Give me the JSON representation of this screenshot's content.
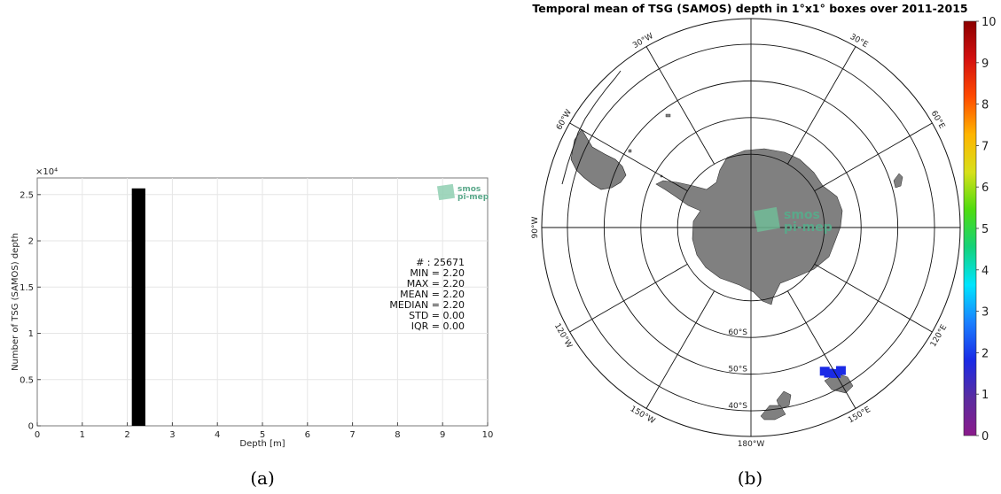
{
  "captions": [
    "(a)",
    "(b)"
  ],
  "logo": {
    "line1": "smos",
    "line2": "pi-mep",
    "color": "#5aa88a"
  },
  "chart_data": [
    {
      "type": "bar",
      "panel": "a",
      "title": "",
      "xlabel": "Depth [m]",
      "ylabel": "Number of TSG (SAMOS) depth",
      "xlim": [
        0,
        10
      ],
      "ylim": [
        0,
        26800
      ],
      "xticks": [
        0,
        1,
        2,
        3,
        4,
        5,
        6,
        7,
        8,
        9,
        10
      ],
      "yticks": [
        0,
        0.5,
        1,
        1.5,
        2,
        2.5
      ],
      "y_exponent_label": "×10⁴",
      "grid": true,
      "bins": [
        {
          "x0": 2.1,
          "x1": 2.4,
          "value": 25671
        }
      ],
      "bar_color": "#000000",
      "stats": [
        "# : 25671",
        "MIN = 2.20",
        "MAX =  2.20",
        "MEAN = 2.20",
        "MEDIAN = 2.20",
        "STD = 0.00",
        "IQR = 0.00"
      ]
    },
    {
      "type": "heatmap",
      "panel": "b",
      "projection": "south-polar-stereographic",
      "title": "Temporal mean of TSG (SAMOS) depth in 1°x1° boxes over 2011-2015",
      "colorbar_range": [
        0,
        10
      ],
      "colorbar_ticks": [
        0,
        1,
        2,
        3,
        4,
        5,
        6,
        7,
        8,
        9,
        10
      ],
      "colorbar_stops": [
        "#8b1a8b",
        "#5a2ca0",
        "#1a2ae6",
        "#1a7fff",
        "#00e5ff",
        "#14d27a",
        "#4fdc10",
        "#d8e01a",
        "#ffb400",
        "#ff4a00",
        "#d41010",
        "#8b0000"
      ],
      "latitude_labels": [
        "60°S",
        "50°S",
        "40°S"
      ],
      "longitude_labels": [
        {
          "text": "30°W",
          "angle": 30
        },
        {
          "text": "30°E",
          "angle": -30
        },
        {
          "text": "60°W",
          "angle": 60
        },
        {
          "text": "60°E",
          "angle": -60
        },
        {
          "text": "90°W",
          "angle": 90
        },
        {
          "text": "120°W",
          "angle": 120
        },
        {
          "text": "120°E",
          "angle": -120
        },
        {
          "text": "150°W",
          "angle": 150
        },
        {
          "text": "150°E",
          "angle": -150
        },
        {
          "text": "180°W",
          "angle": 180
        }
      ],
      "data_cells": [
        {
          "lon": 148,
          "lat": -44,
          "value": 2.2
        },
        {
          "lon": 150,
          "lat": -44,
          "value": 2.2
        },
        {
          "lon": 152,
          "lat": -45,
          "value": 2.2
        },
        {
          "lon": 153,
          "lat": -46,
          "value": 2.2
        }
      ],
      "land_color": "#808080"
    }
  ]
}
